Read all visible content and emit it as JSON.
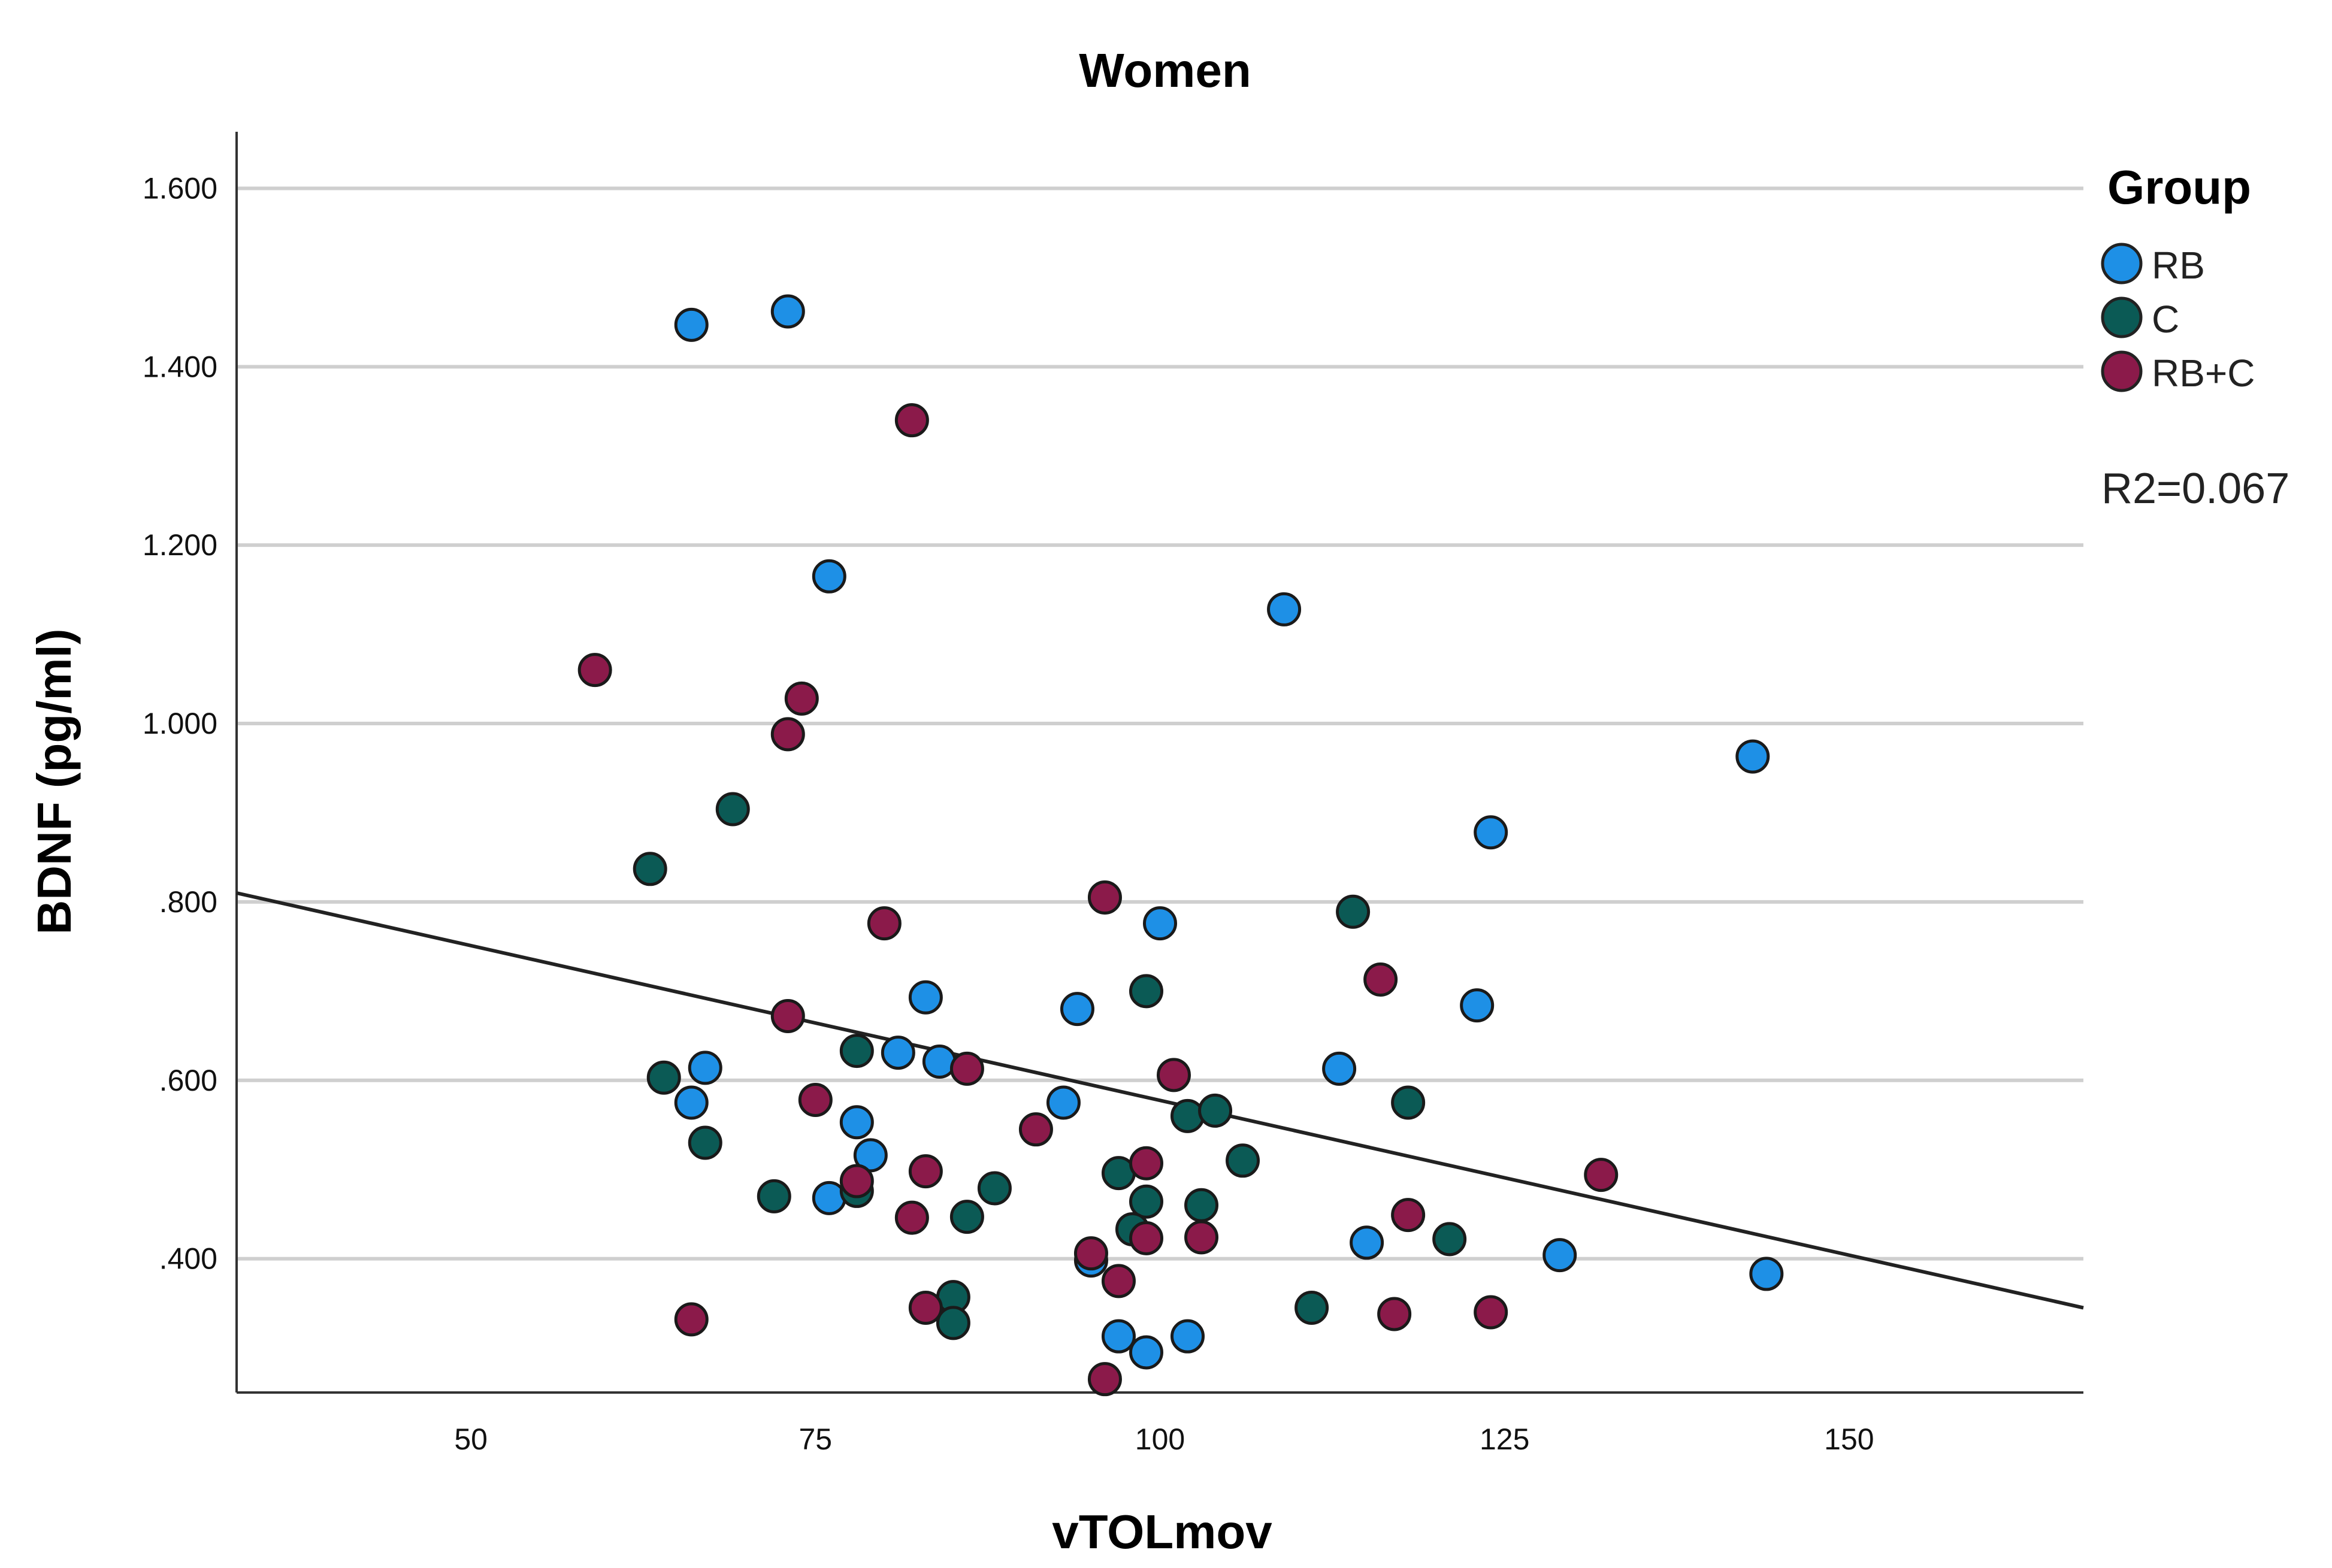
{
  "chart_data": {
    "type": "scatter",
    "title": "Women",
    "xlabel": "vTOLmov",
    "ylabel": "BDNF (pg/ml)",
    "xlim": [
      33,
      167
    ],
    "ylim": [
      0.25,
      1.65
    ],
    "x_ticks": [
      50,
      75,
      100,
      125,
      150
    ],
    "x_tick_labels": [
      "50",
      "75",
      "100",
      "125",
      "150"
    ],
    "y_ticks": [
      0.4,
      0.6,
      0.8,
      1.0,
      1.2,
      1.4,
      1.6
    ],
    "y_tick_labels": [
      ".400",
      ".600",
      ".800",
      "1.000",
      "1.200",
      "1.400",
      "1.600"
    ],
    "grid": "horizontal",
    "legend": {
      "title": "Group",
      "position": "right"
    },
    "annotation": "R2=0.067",
    "fit_line": {
      "x": [
        33,
        167
      ],
      "y": [
        0.81,
        0.345
      ]
    },
    "series": [
      {
        "name": "RB",
        "color": "#1E90E6",
        "points": [
          [
            66,
            1.447
          ],
          [
            73,
            1.462
          ],
          [
            76,
            1.165
          ],
          [
            109,
            1.128
          ],
          [
            143,
            0.963
          ],
          [
            124,
            0.878
          ],
          [
            100,
            0.776
          ],
          [
            83,
            0.693
          ],
          [
            94,
            0.68
          ],
          [
            123,
            0.684
          ],
          [
            81,
            0.631
          ],
          [
            84,
            0.621
          ],
          [
            67,
            0.614
          ],
          [
            113,
            0.613
          ],
          [
            66,
            0.575
          ],
          [
            93,
            0.575
          ],
          [
            78,
            0.553
          ],
          [
            79,
            0.516
          ],
          [
            76,
            0.468
          ],
          [
            115,
            0.418
          ],
          [
            129,
            0.404
          ],
          [
            95,
            0.398
          ],
          [
            144,
            0.383
          ],
          [
            97,
            0.313
          ],
          [
            102,
            0.313
          ],
          [
            99,
            0.295
          ]
        ]
      },
      {
        "name": "C",
        "color": "#0B5A55",
        "points": [
          [
            69,
            0.904
          ],
          [
            63,
            0.837
          ],
          [
            114,
            0.789
          ],
          [
            99,
            0.7
          ],
          [
            78,
            0.633
          ],
          [
            64,
            0.603
          ],
          [
            102,
            0.56
          ],
          [
            104,
            0.566
          ],
          [
            118,
            0.575
          ],
          [
            67,
            0.53
          ],
          [
            106,
            0.51
          ],
          [
            97,
            0.496
          ],
          [
            88,
            0.479
          ],
          [
            78,
            0.476
          ],
          [
            72,
            0.47
          ],
          [
            99,
            0.464
          ],
          [
            103,
            0.46
          ],
          [
            86,
            0.447
          ],
          [
            98,
            0.433
          ],
          [
            121,
            0.422
          ],
          [
            85,
            0.357
          ],
          [
            111,
            0.345
          ],
          [
            85,
            0.328
          ]
        ]
      },
      {
        "name": "RB+C",
        "color": "#8B1A4A",
        "points": [
          [
            82,
            1.34
          ],
          [
            59,
            1.06
          ],
          [
            74,
            1.028
          ],
          [
            73,
            0.988
          ],
          [
            96,
            0.805
          ],
          [
            80,
            0.776
          ],
          [
            116,
            0.713
          ],
          [
            73,
            0.672
          ],
          [
            86,
            0.613
          ],
          [
            101,
            0.606
          ],
          [
            75,
            0.578
          ],
          [
            91,
            0.545
          ],
          [
            99,
            0.507
          ],
          [
            83,
            0.498
          ],
          [
            132,
            0.494
          ],
          [
            78,
            0.487
          ],
          [
            118,
            0.449
          ],
          [
            82,
            0.446
          ],
          [
            103,
            0.424
          ],
          [
            99,
            0.423
          ],
          [
            95,
            0.406
          ],
          [
            97,
            0.375
          ],
          [
            83,
            0.345
          ],
          [
            117,
            0.338
          ],
          [
            124,
            0.34
          ],
          [
            66,
            0.332
          ],
          [
            96,
            0.265
          ]
        ]
      }
    ]
  }
}
